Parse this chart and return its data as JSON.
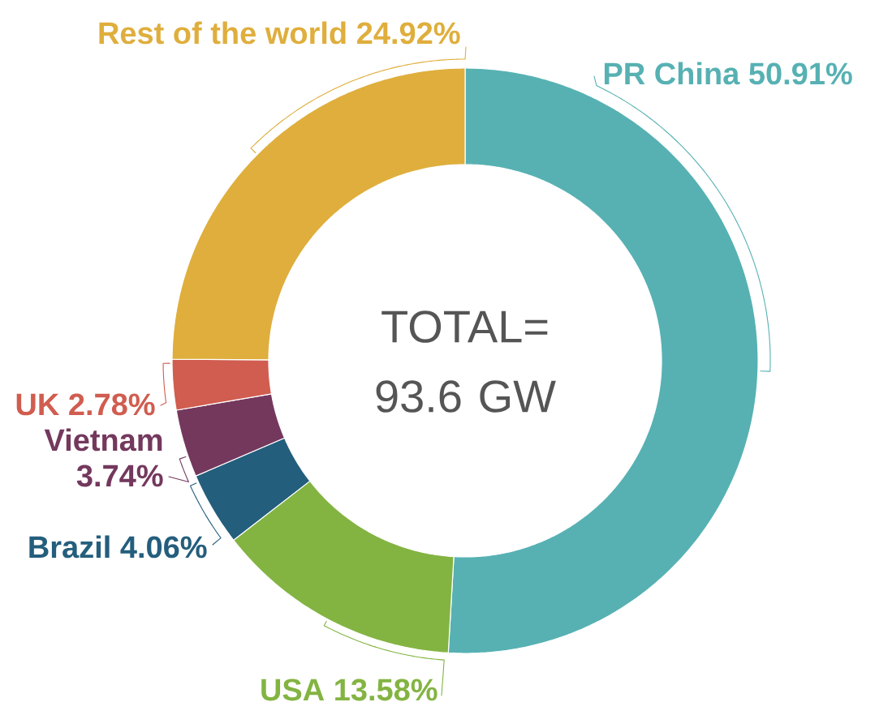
{
  "chart_data": {
    "type": "donut",
    "categories": [
      "PR China",
      "USA",
      "Brazil",
      "Vietnam",
      "UK",
      "Rest of the world"
    ],
    "values": [
      50.91,
      13.58,
      4.06,
      3.74,
      2.78,
      24.92
    ],
    "value_labels": [
      "50.91%",
      "13.58%",
      "4.06%",
      "3.74%",
      "2.78%",
      "24.92%"
    ],
    "colors": [
      "#57b1b3",
      "#83b442",
      "#245e7d",
      "#74385d",
      "#d05d4f",
      "#dfae3c"
    ],
    "annotations": [
      "TOTAL= 93.6 GW"
    ]
  }
}
